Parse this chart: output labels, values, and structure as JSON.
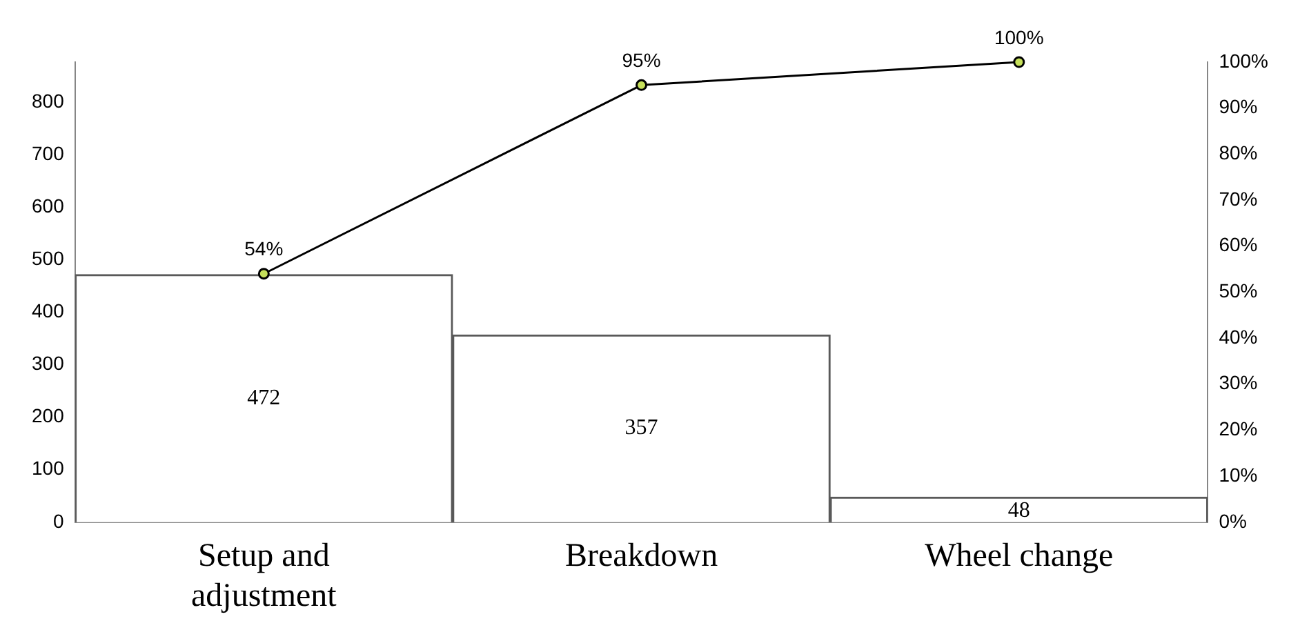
{
  "chart_data": {
    "type": "bar",
    "categories": [
      "Setup and adjustment",
      "Breakdown",
      "Wheel change"
    ],
    "series": [
      {
        "color": "#ffffff",
        "values": [
          472,
          357,
          48
        ],
        "data_labels": true
      },
      {
        "type": "line",
        "axis": "y2",
        "color": "#000000",
        "marker": "circle",
        "values": [
          54,
          95,
          100
        ],
        "value_labels": [
          "54%",
          "95%",
          "100%"
        ]
      }
    ],
    "ylim": [
      0,
      877
    ],
    "yticks": [
      0,
      100,
      200,
      300,
      400,
      500,
      600,
      700,
      800
    ],
    "y2lim": [
      0,
      100
    ],
    "y2ticks": [
      {
        "value": 0,
        "label": "0%"
      },
      {
        "value": 10,
        "label": "10%"
      },
      {
        "value": 20,
        "label": "20%"
      },
      {
        "value": 30,
        "label": "30%"
      },
      {
        "value": 40,
        "label": "40%"
      },
      {
        "value": 50,
        "label": "50%"
      },
      {
        "value": 60,
        "label": "60%"
      },
      {
        "value": 70,
        "label": "70%"
      },
      {
        "value": 80,
        "label": "80%"
      },
      {
        "value": 90,
        "label": "90%"
      },
      {
        "value": 100,
        "label": "100%"
      }
    ],
    "grid": false,
    "legend": false
  }
}
